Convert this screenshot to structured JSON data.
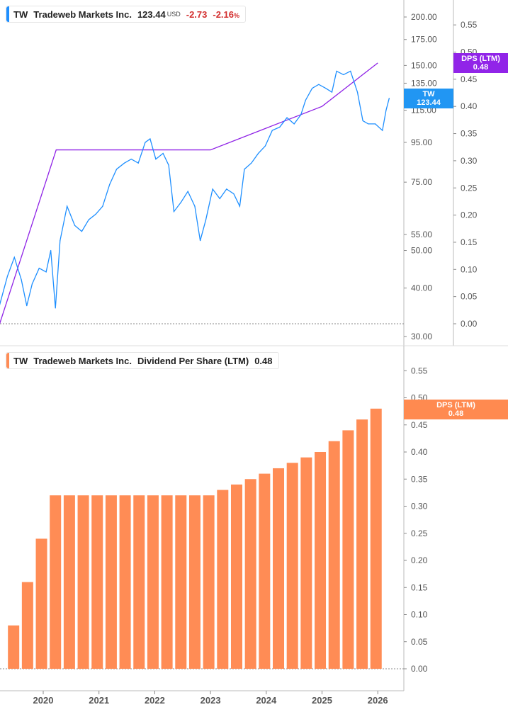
{
  "top_legend": {
    "ticker": "TW",
    "name": "Tradeweb Markets Inc.",
    "price": "123.44",
    "currency": "USD",
    "change": "-2.73",
    "change_pct": "-2.16",
    "pct_sign": "%"
  },
  "bottom_legend": {
    "ticker": "TW",
    "name": "Tradeweb Markets Inc.",
    "metric": "Dividend Per Share (LTM)",
    "value": "0.48"
  },
  "tags": {
    "tw_label": "TW",
    "tw_value": "123.44",
    "dps_label": "DPS (LTM)",
    "dps_value": "0.48",
    "dps2_label": "DPS (LTM)",
    "dps2_value": "0.48"
  },
  "colors": {
    "price": "#1e8fff",
    "dps_line": "#8f22e6",
    "bars": "#ff8c55",
    "tw_tag": "#2196f3",
    "dps_tag": "#9124e8",
    "bar_tag": "#ff8a50"
  },
  "chart_data": [
    {
      "type": "line",
      "scale": "log",
      "ylabel": "",
      "price_ticks": [
        "200.00",
        "175.00",
        "150.00",
        "135.00",
        "115.00",
        "95.00",
        "75.00",
        "55.00",
        "50.00",
        "40.00",
        "30.00"
      ],
      "dps_ticks": [
        "0.55",
        "0.50",
        "0.45",
        "0.40",
        "0.35",
        "0.30",
        "0.25",
        "0.20",
        "0.15",
        "0.10",
        "0.05",
        "0.00"
      ],
      "price_series": {
        "dates": [
          "2019-03-20",
          "2019-05-10",
          "2019-06-25",
          "2019-08-10",
          "2019-09-15",
          "2019-10-20",
          "2019-12-05",
          "2020-01-20",
          "2020-02-20",
          "2020-03-20",
          "2020-04-20",
          "2020-06-05",
          "2020-07-25",
          "2020-09-10",
          "2020-10-25",
          "2020-12-10",
          "2021-01-25",
          "2021-03-10",
          "2021-04-25",
          "2021-06-15",
          "2021-07-30",
          "2021-09-15",
          "2021-10-30",
          "2021-12-01",
          "2022-01-08",
          "2022-02-25",
          "2022-04-01",
          "2022-05-05",
          "2022-06-20",
          "2022-08-05",
          "2022-09-20",
          "2022-10-25",
          "2022-12-01",
          "2023-01-15",
          "2023-03-01",
          "2023-04-15",
          "2023-06-01",
          "2023-07-10",
          "2023-08-10",
          "2023-09-25",
          "2023-11-10",
          "2023-12-25",
          "2024-02-10",
          "2024-03-28",
          "2024-05-15",
          "2024-07-01",
          "2024-08-15",
          "2024-09-15",
          "2024-10-28",
          "2024-12-10",
          "2025-01-25",
          "2025-03-05",
          "2025-04-05",
          "2025-05-20",
          "2025-07-05",
          "2025-08-20",
          "2025-09-25",
          "2025-10-30",
          "2025-12-15",
          "2026-02-01",
          "2026-02-25",
          "2026-03-15"
        ],
        "values": [
          36.2,
          42.9,
          48,
          42,
          36,
          41,
          45,
          44,
          50,
          35.5,
          53,
          65,
          58,
          56,
          60,
          62,
          65,
          74,
          81,
          84,
          86,
          84,
          95,
          97,
          86,
          89,
          83,
          63,
          66.5,
          71,
          65,
          53,
          60,
          72,
          68,
          72,
          70,
          65,
          81,
          84,
          89,
          93,
          102,
          104,
          110,
          106,
          112,
          122,
          131,
          134,
          131,
          128,
          145,
          142,
          145,
          128,
          108,
          106,
          106,
          102,
          115,
          123.44
        ]
      },
      "dps_series": {
        "dates": [
          "2019-03-20",
          "2020-03-25",
          "2023-01-01",
          "2024-01-01",
          "2025-01-01",
          "2026-01-01"
        ],
        "values": [
          0,
          0.32,
          0.32,
          0.36,
          0.4,
          0.48
        ]
      }
    },
    {
      "type": "bar",
      "title": "",
      "x_ticks": [
        "2020",
        "2021",
        "2022",
        "2023",
        "2024",
        "2025",
        "2026"
      ],
      "y_ticks": [
        "0.55",
        "0.50",
        "0.45",
        "0.40",
        "0.35",
        "0.30",
        "0.25",
        "0.20",
        "0.15",
        "0.10",
        "0.05",
        "0.00"
      ],
      "dates": [
        "2019-06-20",
        "2019-09-20",
        "2019-12-20",
        "2020-03-20",
        "2020-06-20",
        "2020-09-20",
        "2020-12-20",
        "2021-03-20",
        "2021-06-20",
        "2021-09-20",
        "2021-12-20",
        "2022-03-20",
        "2022-06-20",
        "2022-09-20",
        "2022-12-20",
        "2023-03-20",
        "2023-06-20",
        "2023-09-20",
        "2023-12-20",
        "2024-03-20",
        "2024-06-20",
        "2024-09-20",
        "2024-12-20",
        "2025-03-20",
        "2025-06-20",
        "2025-09-20",
        "2025-12-20"
      ],
      "values": [
        0.08,
        0.16,
        0.24,
        0.32,
        0.32,
        0.32,
        0.32,
        0.32,
        0.32,
        0.32,
        0.32,
        0.32,
        0.32,
        0.32,
        0.32,
        0.33,
        0.34,
        0.35,
        0.36,
        0.37,
        0.38,
        0.39,
        0.4,
        0.42,
        0.44,
        0.46,
        0.48
      ]
    }
  ]
}
